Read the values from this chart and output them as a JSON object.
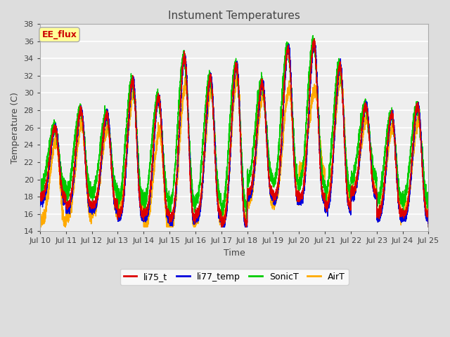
{
  "title": "Instument Temperatures",
  "xlabel": "Time",
  "ylabel": "Temperature (C)",
  "ylim": [
    14,
    38
  ],
  "xlim": [
    0,
    15
  ],
  "annotation_text": "EE_flux",
  "annotation_color": "#cc0000",
  "annotation_bg": "#ffff99",
  "series_names": [
    "li75_t",
    "li77_temp",
    "SonicT",
    "AirT"
  ],
  "series_colors": [
    "#dd0000",
    "#0000dd",
    "#00cc00",
    "#ffaa00"
  ],
  "series_lw": [
    1.0,
    1.0,
    1.0,
    1.0
  ],
  "x_ticks": [
    "Jul 10",
    "Jul 11",
    "Jul 12",
    "Jul 13",
    "Jul 14",
    "Jul 15",
    "Jul 16",
    "Jul 17",
    "Jul 18",
    "Jul 19",
    "Jul 20",
    "Jul 21",
    "Jul 22",
    "Jul 23",
    "Jul 24",
    "Jul 25"
  ],
  "yticks": [
    14,
    16,
    18,
    20,
    22,
    24,
    26,
    28,
    30,
    32,
    34,
    36,
    38
  ],
  "fig_bg": "#dddddd",
  "plot_bg": "#eeeeee",
  "grid_color": "#ffffff",
  "tick_color": "#444444",
  "figsize": [
    6.4,
    4.8
  ],
  "dpi": 100
}
